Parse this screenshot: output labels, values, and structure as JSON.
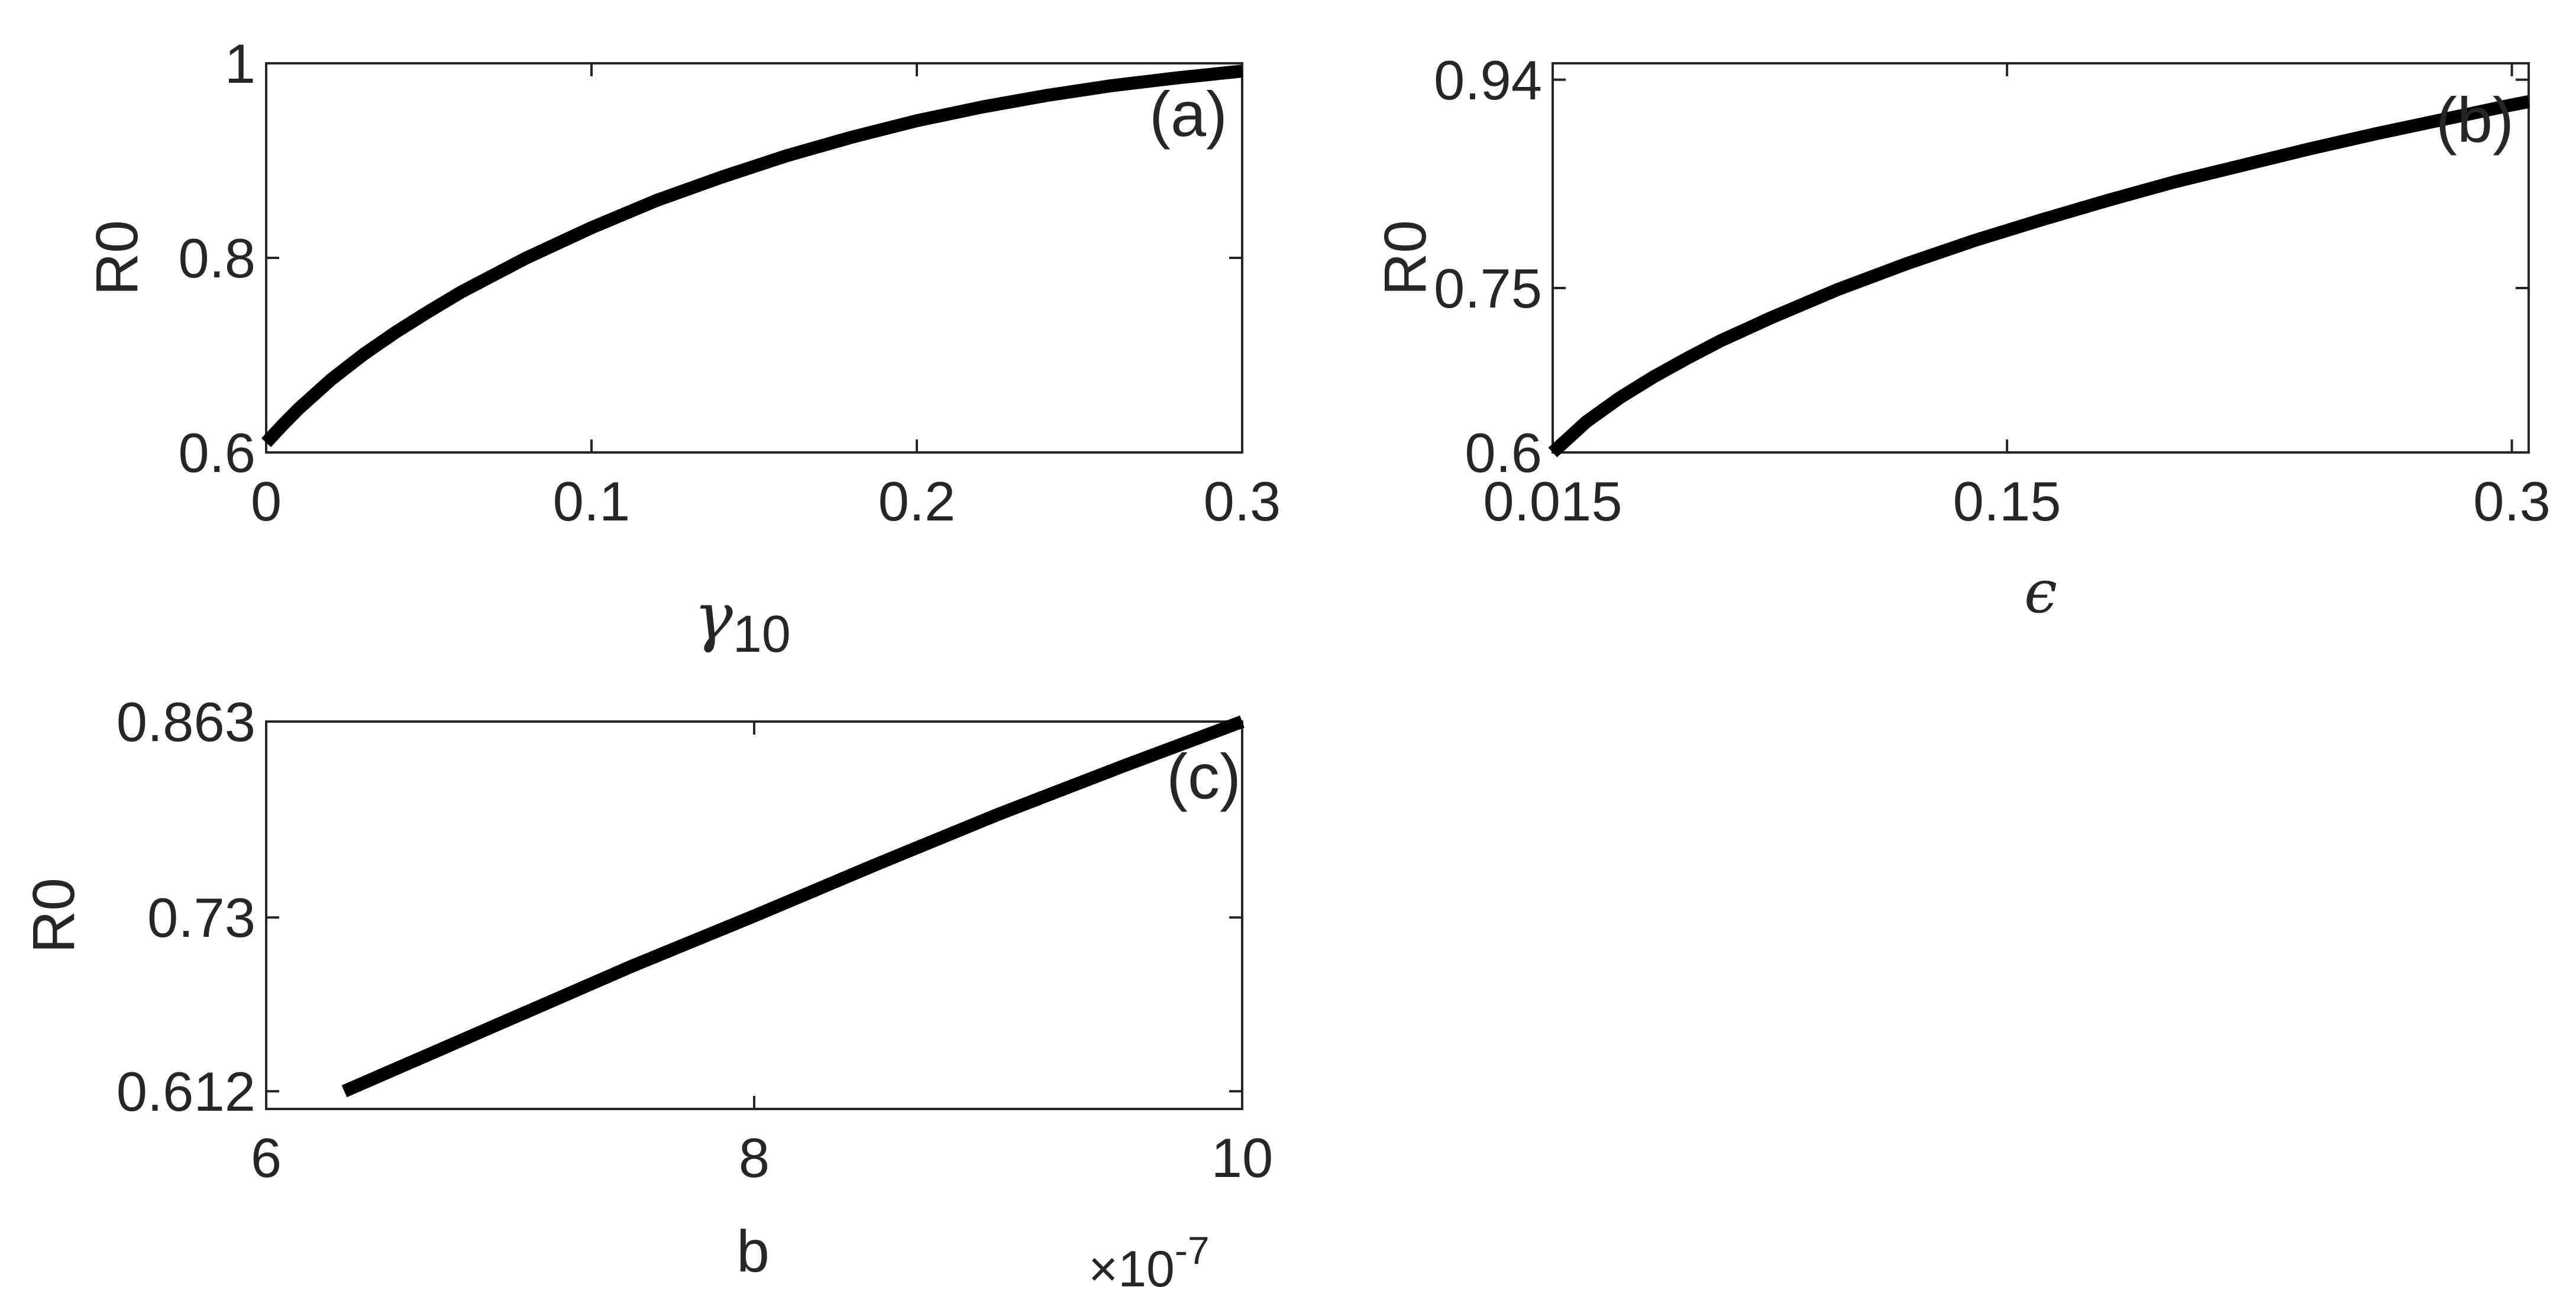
{
  "figure": {
    "colors": {
      "axis": "#262626",
      "line": "#000000",
      "background": "#ffffff"
    }
  },
  "chart_data": [
    {
      "id": "a",
      "type": "line",
      "panel_label": "(a)",
      "xlabel": "γ",
      "xlabel_subscript": "10",
      "ylabel": "R0",
      "xlim": [
        0,
        0.3
      ],
      "ylim": [
        0.6,
        1
      ],
      "xticks": [
        0,
        0.1,
        0.2,
        0.3
      ],
      "xtick_labels": [
        "0",
        "0.1",
        "0.2",
        "0.3"
      ],
      "yticks": [
        0.6,
        0.8,
        1
      ],
      "ytick_labels": [
        "0.6",
        "0.8",
        "1"
      ],
      "grid": false,
      "series": [
        {
          "x": [
            0,
            0.005,
            0.01,
            0.02,
            0.03,
            0.04,
            0.05,
            0.06,
            0.08,
            0.1,
            0.12,
            0.14,
            0.16,
            0.18,
            0.2,
            0.22,
            0.24,
            0.26,
            0.28,
            0.3
          ],
          "y": [
            0.61,
            0.628,
            0.645,
            0.675,
            0.701,
            0.724,
            0.745,
            0.765,
            0.8,
            0.831,
            0.859,
            0.883,
            0.905,
            0.924,
            0.941,
            0.955,
            0.967,
            0.977,
            0.985,
            0.992
          ]
        }
      ]
    },
    {
      "id": "b",
      "type": "line",
      "panel_label": "(b)",
      "xlabel": "ϵ",
      "ylabel": "R0",
      "xlim": [
        0.015,
        0.305
      ],
      "ylim": [
        0.6,
        0.955
      ],
      "xticks": [
        0.015,
        0.15,
        0.3
      ],
      "xtick_labels": [
        "0.015",
        "0.15",
        "0.3"
      ],
      "yticks": [
        0.6,
        0.75,
        0.94
      ],
      "ytick_labels": [
        "0.6",
        "0.75",
        "0.94"
      ],
      "grid": false,
      "series": [
        {
          "x": [
            0.015,
            0.02,
            0.025,
            0.035,
            0.045,
            0.055,
            0.065,
            0.08,
            0.1,
            0.12,
            0.14,
            0.16,
            0.18,
            0.2,
            0.22,
            0.24,
            0.26,
            0.28,
            0.3,
            0.305
          ],
          "y": [
            0.6,
            0.614,
            0.628,
            0.65,
            0.669,
            0.686,
            0.702,
            0.723,
            0.749,
            0.772,
            0.793,
            0.812,
            0.83,
            0.847,
            0.862,
            0.877,
            0.891,
            0.904,
            0.917,
            0.92
          ]
        }
      ]
    },
    {
      "id": "c",
      "type": "line",
      "panel_label": "(c)",
      "xlabel": "b",
      "x_multiplier": "×10",
      "x_multiplier_exponent": "-7",
      "ylabel": "R0",
      "xlim": [
        6,
        10
      ],
      "ylim": [
        0.6,
        0.863
      ],
      "xticks": [
        6,
        8,
        10
      ],
      "xtick_labels": [
        "6",
        "8",
        "10"
      ],
      "yticks": [
        0.612,
        0.73,
        0.863
      ],
      "ytick_labels": [
        "0.612",
        "0.73",
        "0.863"
      ],
      "grid": false,
      "series": [
        {
          "x": [
            6.32,
            7,
            7.5,
            8,
            8.5,
            9,
            9.5,
            10
          ],
          "y": [
            0.612,
            0.661,
            0.697,
            0.731,
            0.766,
            0.8,
            0.832,
            0.863
          ]
        }
      ]
    }
  ]
}
